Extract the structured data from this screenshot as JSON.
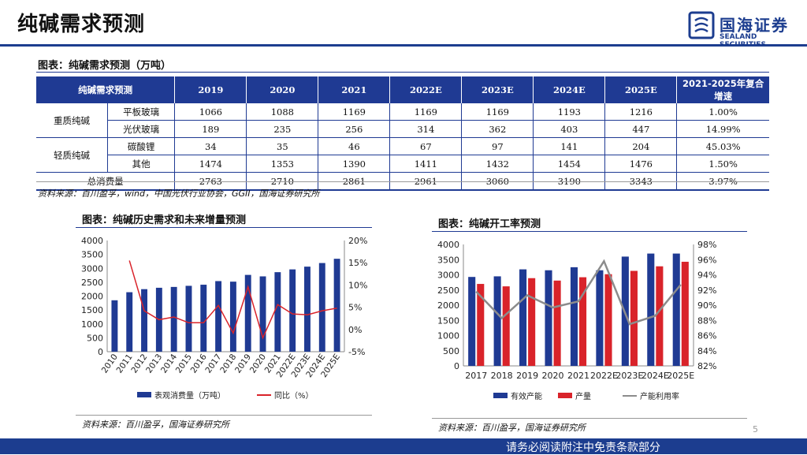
{
  "page": {
    "title": "纯碱需求预测",
    "logo_cn": "国海证券",
    "logo_en": "SEALAND SECURITIES",
    "page_number": "5",
    "footer": "请务必阅读附注中免责条款部分",
    "brand_color": "#1c3d8f"
  },
  "table_section": {
    "caption": "图表：纯碱需求预测（万吨）",
    "headers": [
      "纯碱需求预测",
      "2019",
      "2020",
      "2021",
      "2022E",
      "2023E",
      "2024E",
      "2025E",
      "2021-2025年复合增速"
    ],
    "groups": [
      {
        "name": "重质纯碱",
        "rows": [
          {
            "label": "平板玻璃",
            "values": [
              "1066",
              "1088",
              "1169",
              "1169",
              "1169",
              "1193",
              "1216",
              "1.00%"
            ]
          },
          {
            "label": "光伏玻璃",
            "values": [
              "189",
              "235",
              "256",
              "314",
              "362",
              "403",
              "447",
              "14.99%"
            ]
          }
        ]
      },
      {
        "name": "轻质纯碱",
        "rows": [
          {
            "label": "碳酸锂",
            "values": [
              "34",
              "35",
              "46",
              "67",
              "97",
              "141",
              "204",
              "45.03%"
            ]
          },
          {
            "label": "其他",
            "values": [
              "1474",
              "1353",
              "1390",
              "1411",
              "1432",
              "1454",
              "1476",
              "1.50%"
            ]
          }
        ]
      }
    ],
    "total": {
      "label": "总消费量",
      "values": [
        "2763",
        "2710",
        "2861",
        "2961",
        "3060",
        "3190",
        "3343",
        "3.97%"
      ]
    },
    "source": "资料来源：百川盈孚，wind，中国光伏行业协会，GGII，国海证券研究所"
  },
  "left_chart": {
    "caption": "图表：纯碱历史需求和未来增量预测",
    "source": "资料来源：百川盈孚，国海证券研究所"
  },
  "right_chart": {
    "caption": "图表：纯碱开工率预测",
    "source": "资料来源：百川盈孚，国海证券研究所"
  },
  "chart_data": [
    {
      "type": "bar",
      "title": "图表：纯碱历史需求和未来增量预测",
      "categories": [
        "2010",
        "2011",
        "2012",
        "2013",
        "2014",
        "2015",
        "2016",
        "2017",
        "2018",
        "2019",
        "2020",
        "2021",
        "2022E",
        "2023E",
        "2024E",
        "2025E"
      ],
      "ylim": [
        0,
        4000
      ],
      "yticks": [
        "0",
        "500",
        "1000",
        "1500",
        "2000",
        "2500",
        "3000",
        "3500",
        "4000"
      ],
      "y2lim": [
        -5,
        20
      ],
      "y2ticks": [
        "-5%",
        "0%",
        "5%",
        "10%",
        "15%",
        "20%"
      ],
      "series": [
        {
          "name": "表观消费量（万吨）",
          "kind": "bar",
          "axis": "left",
          "color": "#1f3a93",
          "values": [
            1850,
            2140,
            2250,
            2300,
            2330,
            2370,
            2410,
            2540,
            2520,
            2763,
            2710,
            2861,
            2961,
            3060,
            3190,
            3343
          ]
        },
        {
          "name": "同比（%）",
          "kind": "line",
          "axis": "right",
          "color": "#d9232a",
          "values": [
            null,
            15.5,
            4.2,
            2.2,
            2.8,
            1.5,
            1.5,
            5.4,
            -0.8,
            9.6,
            -1.9,
            5.6,
            3.5,
            3.3,
            4.2,
            4.8
          ]
        }
      ],
      "legend": "bottom"
    },
    {
      "type": "bar",
      "title": "图表：纯碱开工率预测",
      "categories": [
        "2017",
        "2018",
        "2019",
        "2020",
        "2021",
        "2022E",
        "2023E",
        "2024E",
        "2025E"
      ],
      "ylim": [
        0,
        4000
      ],
      "yticks": [
        "0",
        "500",
        "1000",
        "1500",
        "2000",
        "2500",
        "3000",
        "3500",
        "4000"
      ],
      "y2lim": [
        82,
        98
      ],
      "y2ticks": [
        "82%",
        "84%",
        "86%",
        "88%",
        "90%",
        "92%",
        "94%",
        "96%",
        "98%"
      ],
      "series": [
        {
          "name": "有效产能",
          "kind": "bar",
          "axis": "left",
          "color": "#1f3a93",
          "values": [
            2930,
            2950,
            3180,
            3150,
            3250,
            3150,
            3600,
            3700,
            3700
          ]
        },
        {
          "name": "产量",
          "kind": "bar",
          "axis": "left",
          "color": "#d9232a",
          "values": [
            2700,
            2620,
            2890,
            2810,
            2920,
            3020,
            3130,
            3280,
            3430
          ]
        },
        {
          "name": "产能利用率",
          "kind": "line",
          "axis": "right",
          "color": "#8c8c8c",
          "values": [
            91.8,
            88.3,
            91.3,
            89.7,
            90.5,
            95.8,
            87.5,
            88.6,
            92.7
          ]
        }
      ],
      "legend": "bottom"
    }
  ]
}
